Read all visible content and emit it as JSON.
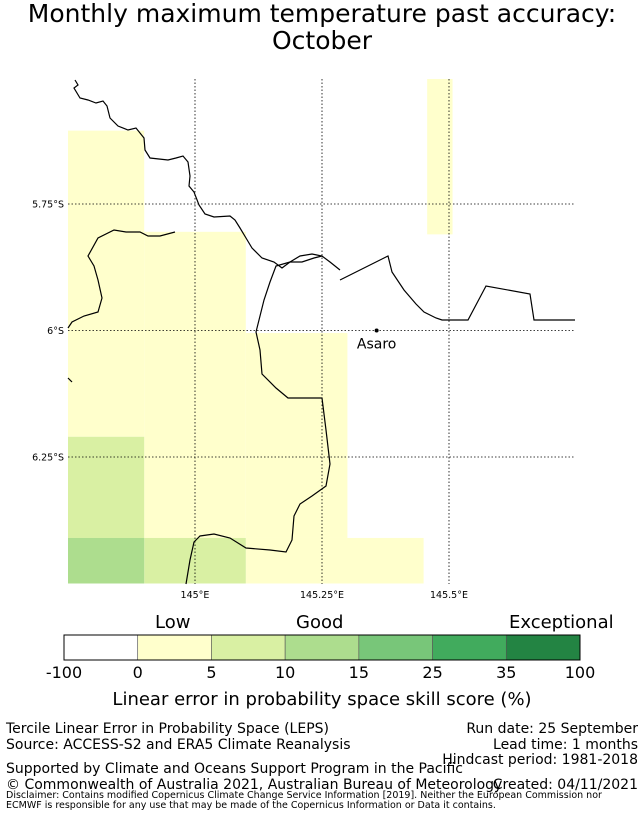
{
  "title": {
    "line1": "Monthly maximum temperature past accuracy:",
    "line2": "October"
  },
  "map": {
    "lat_ticks": [
      "5.75°S",
      "6°S",
      "6.25°S"
    ],
    "lon_ticks": [
      "145°E",
      "145.25°E",
      "145.5°E"
    ],
    "place": {
      "name": "Asaro",
      "lon": 145.3575,
      "lat": -6.01
    },
    "extent": {
      "lon_min": 144.75,
      "lon_max": 145.75,
      "lat_min": -6.5,
      "lat_max": -5.5
    },
    "cells": [
      {
        "lon0": 145.457,
        "lon1": 145.507,
        "lat0": -5.5,
        "lat1": -5.81,
        "score_class": "0-5"
      },
      {
        "lon0": 144.75,
        "lon1": 144.9,
        "lat0": -5.605,
        "lat1": -6.21,
        "score_class": "0-5"
      },
      {
        "lon0": 144.9,
        "lon1": 145.1,
        "lat0": -5.805,
        "lat1": -6.41,
        "score_class": "0-5"
      },
      {
        "lon0": 145.1,
        "lon1": 145.3,
        "lat0": -6.005,
        "lat1": -6.41,
        "score_class": "0-5"
      },
      {
        "lon0": 145.1,
        "lon1": 145.45,
        "lat0": -6.41,
        "lat1": -6.5,
        "score_class": "0-5"
      },
      {
        "lon0": 144.75,
        "lon1": 144.9,
        "lat0": -6.21,
        "lat1": -6.41,
        "score_class": "5-10"
      },
      {
        "lon0": 144.9,
        "lon1": 145.1,
        "lat0": -6.41,
        "lat1": -6.5,
        "score_class": "5-10"
      },
      {
        "lon0": 144.75,
        "lon1": 144.9,
        "lat0": -6.41,
        "lat1": -6.5,
        "score_class": "10-15"
      }
    ]
  },
  "legend": {
    "category_low": "Low",
    "category_good": "Good",
    "category_exceptional": "Exceptional",
    "ticks": [
      "-100",
      "0",
      "5",
      "10",
      "15",
      "25",
      "35",
      "100"
    ],
    "colors": [
      "#ffffff",
      "#ffffcc",
      "#d9f0a3",
      "#addd8e",
      "#78c679",
      "#41ab5d",
      "#238443"
    ],
    "axis_title": "Linear error in probability space skill score (%)"
  },
  "footer": {
    "method": "Tercile Linear Error in Probability Space (LEPS)",
    "source": "Source: ACCESS-S2 and ERA5 Climate Reanalysis",
    "run_date": "Run date: 25 September",
    "lead_time": "Lead time: 1 months",
    "hindcast": "Hindcast period: 1981-2018",
    "support": "Supported by Climate and Oceans Support Program in the Pacific",
    "copyright": "© Commonwealth of Australia 2021, Australian Bureau of Meteorology",
    "created": "Created: 04/11/2021",
    "disclaimer": "Disclaimer: Contains modified Copernicus Climate Change Service Information [2019]. Neither the European Commission nor ECMWF is responsible for any use that may be made of the Copernicus Information or Data it contains."
  }
}
